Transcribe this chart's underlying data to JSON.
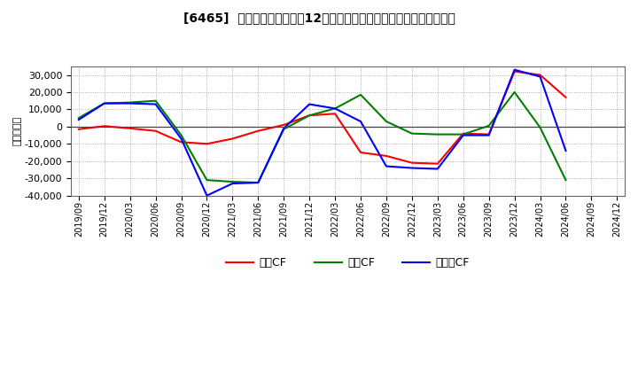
{
  "title": "[6465]  キャッシュフローの12か月移動合計の対前年同期増減額の推移",
  "ylabel": "（百万円）",
  "background_color": "#ffffff",
  "plot_bg_color": "#ffffff",
  "grid_color": "#aaaaaa",
  "x_labels": [
    "2019/09",
    "2019/12",
    "2020/03",
    "2020/06",
    "2020/09",
    "2020/12",
    "2021/03",
    "2021/06",
    "2021/09",
    "2021/12",
    "2022/03",
    "2022/06",
    "2022/09",
    "2022/12",
    "2023/03",
    "2023/06",
    "2023/09",
    "2023/12",
    "2024/03",
    "2024/06",
    "2024/09",
    "2024/12"
  ],
  "営業CF": [
    -1500,
    300,
    -1000,
    -2500,
    -9000,
    -10000,
    -7000,
    -2500,
    1000,
    6500,
    7500,
    -15000,
    -17000,
    -21000,
    -21500,
    -4000,
    -4500,
    32000,
    30000,
    17000,
    null,
    null
  ],
  "投資CF": [
    5000,
    13500,
    14000,
    15000,
    -5000,
    -31000,
    -32000,
    -32500,
    -1500,
    6500,
    10500,
    18500,
    3000,
    -4000,
    -4500,
    -4500,
    500,
    20000,
    -500,
    -31000,
    null,
    null
  ],
  "フリーCF": [
    4000,
    13500,
    13500,
    13000,
    -7000,
    -40000,
    -33000,
    -32500,
    -1000,
    13000,
    10500,
    3000,
    -23000,
    -24000,
    -24500,
    -5000,
    -5000,
    33000,
    29000,
    -14000,
    null,
    null
  ],
  "legend_labels": [
    "営業CF",
    "投資CF",
    "フリーCF"
  ],
  "line_colors": {
    "営業CF": "#ff0000",
    "投資CF": "#008000",
    "フリーCF": "#0000ff"
  },
  "ylim": [
    -40000,
    35000
  ],
  "yticks": [
    -40000,
    -30000,
    -20000,
    -10000,
    0,
    10000,
    20000,
    30000
  ]
}
